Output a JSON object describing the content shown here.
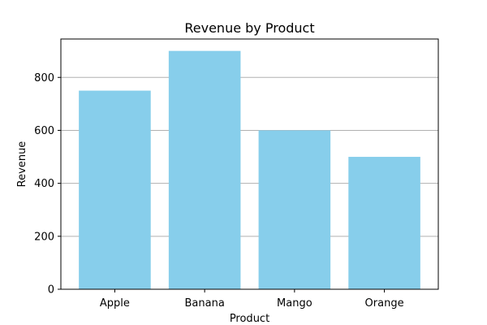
{
  "chart_data": {
    "type": "bar",
    "title": "Revenue by Product",
    "xlabel": "Product",
    "ylabel": "Revenue",
    "categories": [
      "Apple",
      "Banana",
      "Mango",
      "Orange"
    ],
    "values": [
      750,
      900,
      600,
      500
    ],
    "yticks": [
      0,
      200,
      400,
      600,
      800
    ],
    "ylim": [
      0,
      945
    ],
    "grid": {
      "y": true,
      "x": false
    },
    "colors": {
      "bar": "#87ceeb",
      "grid": "#b0b0b0",
      "axis": "#000000"
    }
  }
}
